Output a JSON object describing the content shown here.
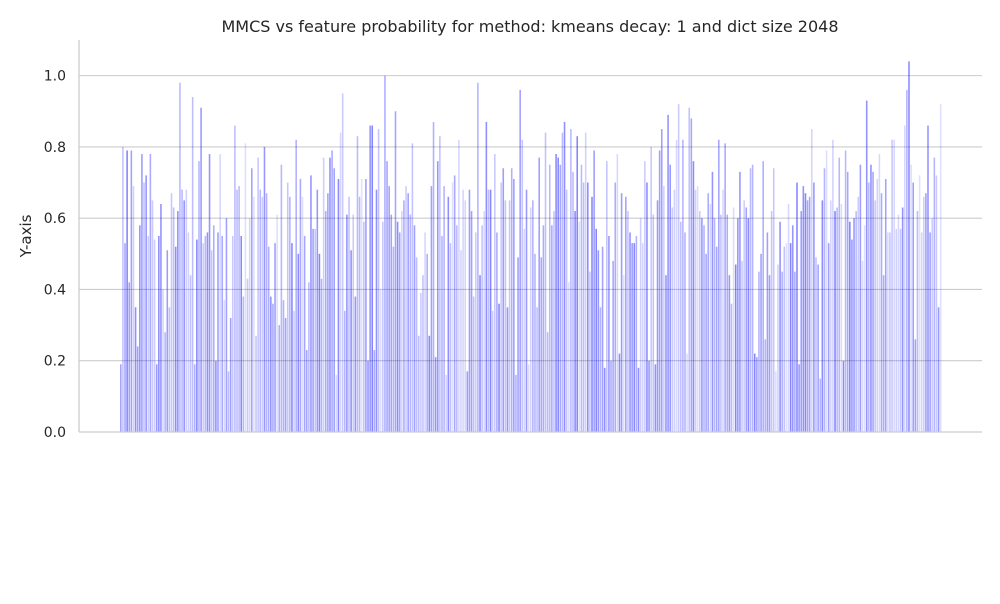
{
  "chart_data": {
    "type": "bar",
    "title": "MMCS vs feature probability for method: kmeans decay: 1 and dict size 2048",
    "xlabel": "",
    "ylabel": "Y-axis",
    "ylim": [
      0.0,
      1.1
    ],
    "yticks": [
      "0.0",
      "0.2",
      "0.4",
      "0.6",
      "0.8",
      "1.0"
    ],
    "ytick_values": [
      0.0,
      0.2,
      0.4,
      0.6,
      0.8,
      1.0
    ],
    "grid": "horizontal",
    "bar_color": "#0000ff",
    "bar_alpha_min": 0.12,
    "bar_alpha_max": 0.48,
    "values": [
      0.19,
      0.8,
      0.53,
      0.79,
      0.42,
      0.79,
      0.69,
      0.35,
      0.24,
      0.58,
      0.78,
      0.7,
      0.72,
      0.55,
      0.78,
      0.65,
      0.54,
      0.19,
      0.55,
      0.64,
      0.4,
      0.28,
      0.51,
      0.35,
      0.67,
      0.63,
      0.52,
      0.62,
      0.98,
      0.68,
      0.65,
      0.68,
      0.56,
      0.44,
      0.94,
      0.19,
      0.54,
      0.76,
      0.91,
      0.53,
      0.55,
      0.56,
      0.78,
      0.51,
      0.58,
      0.2,
      0.56,
      0.78,
      0.55,
      0.37,
      0.6,
      0.17,
      0.32,
      0.55,
      0.86,
      0.68,
      0.69,
      0.55,
      0.38,
      0.81,
      0.43,
      0.6,
      0.74,
      0.66,
      0.27,
      0.77,
      0.68,
      0.66,
      0.8,
      0.67,
      0.52,
      0.38,
      0.36,
      0.53,
      0.61,
      0.3,
      0.75,
      0.37,
      0.32,
      0.7,
      0.66,
      0.53,
      0.34,
      0.82,
      0.5,
      0.71,
      0.66,
      0.55,
      0.23,
      0.42,
      0.72,
      0.57,
      0.57,
      0.68,
      0.5,
      0.43,
      0.77,
      0.62,
      0.67,
      0.77,
      0.79,
      0.74,
      0.16,
      0.71,
      0.84,
      0.95,
      0.34,
      0.61,
      0.66,
      0.51,
      0.61,
      0.38,
      0.83,
      0.66,
      0.71,
      0.59,
      0.71,
      0.2,
      0.86,
      0.86,
      0.23,
      0.68,
      0.85,
      0.4,
      0.59,
      1.0,
      0.76,
      0.69,
      0.61,
      0.52,
      0.9,
      0.59,
      0.56,
      0.62,
      0.65,
      0.69,
      0.67,
      0.61,
      0.81,
      0.58,
      0.49,
      0.27,
      0.39,
      0.44,
      0.56,
      0.5,
      0.27,
      0.69,
      0.87,
      0.21,
      0.76,
      0.83,
      0.55,
      0.69,
      0.16,
      0.66,
      0.53,
      0.7,
      0.72,
      0.58,
      0.82,
      0.51,
      0.68,
      0.65,
      0.17,
      0.68,
      0.62,
      0.38,
      0.56,
      0.98,
      0.44,
      0.58,
      0.62,
      0.87,
      0.68,
      0.68,
      0.34,
      0.78,
      0.56,
      0.36,
      0.7,
      0.74,
      0.65,
      0.35,
      0.65,
      0.74,
      0.71,
      0.16,
      0.49,
      0.96,
      0.82,
      0.57,
      0.68,
      0.19,
      0.63,
      0.65,
      0.5,
      0.35,
      0.77,
      0.49,
      0.58,
      0.84,
      0.28,
      0.75,
      0.58,
      0.62,
      0.78,
      0.77,
      0.75,
      0.84,
      0.87,
      0.68,
      0.42,
      0.85,
      0.73,
      0.62,
      0.83,
      0.59,
      0.75,
      0.7,
      0.84,
      0.7,
      0.45,
      0.66,
      0.79,
      0.57,
      0.51,
      0.35,
      0.52,
      0.18,
      0.76,
      0.55,
      0.2,
      0.48,
      0.7,
      0.78,
      0.22,
      0.67,
      0.44,
      0.66,
      0.62,
      0.56,
      0.53,
      0.53,
      0.55,
      0.18,
      0.6,
      0.53,
      0.76,
      0.7,
      0.2,
      0.8,
      0.61,
      0.19,
      0.65,
      0.79,
      0.85,
      0.69,
      0.44,
      0.89,
      0.75,
      0.63,
      0.68,
      0.82,
      0.92,
      0.59,
      0.82,
      0.56,
      0.22,
      0.91,
      0.88,
      0.76,
      0.68,
      0.69,
      0.62,
      0.6,
      0.58,
      0.5,
      0.67,
      0.64,
      0.73,
      0.6,
      0.52,
      0.82,
      0.61,
      0.68,
      0.81,
      0.61,
      0.44,
      0.36,
      0.63,
      0.47,
      0.6,
      0.73,
      0.48,
      0.65,
      0.63,
      0.6,
      0.74,
      0.75,
      0.22,
      0.21,
      0.45,
      0.5,
      0.76,
      0.26,
      0.56,
      0.44,
      0.62,
      0.74,
      0.17,
      0.47,
      0.59,
      0.45,
      0.52,
      0.53,
      0.64,
      0.53,
      0.58,
      0.45,
      0.7,
      0.19,
      0.62,
      0.69,
      0.67,
      0.65,
      0.66,
      0.85,
      0.7,
      0.49,
      0.47,
      0.15,
      0.65,
      0.74,
      0.79,
      0.53,
      0.65,
      0.82,
      0.62,
      0.63,
      0.77,
      0.64,
      0.2,
      0.79,
      0.73,
      0.59,
      0.54,
      0.6,
      0.62,
      0.66,
      0.75,
      0.48,
      0.58,
      0.93,
      0.7,
      0.75,
      0.73,
      0.65,
      0.71,
      0.78,
      0.67,
      0.44,
      0.71,
      0.56,
      0.56,
      0.82,
      0.82,
      0.57,
      0.61,
      0.57,
      0.63,
      0.86,
      0.96,
      1.04,
      0.75,
      0.7,
      0.26,
      0.62,
      0.72,
      0.56,
      0.66,
      0.67,
      0.86,
      0.56,
      0.6,
      0.77,
      0.72,
      0.35,
      0.92
    ]
  }
}
